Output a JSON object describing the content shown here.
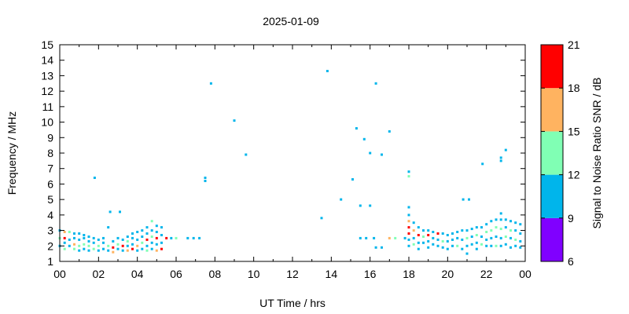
{
  "chart_data": {
    "type": "heatmap",
    "title": "2025-01-09",
    "xlabel": "UT Time / hrs",
    "ylabel": "Frequency / MHz",
    "xlim": [
      0,
      24
    ],
    "ylim": [
      1,
      15
    ],
    "x_tick_labels": [
      "00",
      "02",
      "04",
      "06",
      "08",
      "10",
      "12",
      "14",
      "16",
      "18",
      "20",
      "22",
      "00"
    ],
    "y_tick_labels": [
      "1",
      "2",
      "3",
      "4",
      "5",
      "6",
      "7",
      "8",
      "9",
      "10",
      "11",
      "12",
      "13",
      "14",
      "15"
    ],
    "colorbar": {
      "label": "Signal to Noise Ratio SNR / dB",
      "range": [
        6,
        21
      ],
      "tick_labels": [
        "6",
        "9",
        "12",
        "15",
        "18",
        "21"
      ],
      "bands": [
        {
          "from": 6,
          "to": 9,
          "color": "#8000ff"
        },
        {
          "from": 9,
          "to": 12,
          "color": "#00b5eb"
        },
        {
          "from": 12,
          "to": 15,
          "color": "#80ffb4"
        },
        {
          "from": 15,
          "to": 18,
          "color": "#ffb360"
        },
        {
          "from": 18,
          "to": 21,
          "color": "#ff0000"
        }
      ]
    },
    "points": [
      {
        "t": 0.0,
        "f": 2.0,
        "snr": 10
      },
      {
        "t": 0.0,
        "f": 2.5,
        "snr": 13
      },
      {
        "t": 0.0,
        "f": 3.0,
        "snr": 11
      },
      {
        "t": 0.25,
        "f": 1.8,
        "snr": 14
      },
      {
        "t": 0.25,
        "f": 2.2,
        "snr": 10
      },
      {
        "t": 0.25,
        "f": 2.5,
        "snr": 19
      },
      {
        "t": 0.25,
        "f": 2.9,
        "snr": 16
      },
      {
        "t": 0.5,
        "f": 2.0,
        "snr": 10
      },
      {
        "t": 0.5,
        "f": 2.4,
        "snr": 11
      },
      {
        "t": 0.5,
        "f": 2.9,
        "snr": 13
      },
      {
        "t": 0.75,
        "f": 1.8,
        "snr": 13
      },
      {
        "t": 0.75,
        "f": 2.1,
        "snr": 16
      },
      {
        "t": 0.75,
        "f": 2.5,
        "snr": 10
      },
      {
        "t": 0.75,
        "f": 2.8,
        "snr": 11
      },
      {
        "t": 1.0,
        "f": 1.7,
        "snr": 10
      },
      {
        "t": 1.0,
        "f": 2.0,
        "snr": 13
      },
      {
        "t": 1.0,
        "f": 2.4,
        "snr": 10
      },
      {
        "t": 1.0,
        "f": 2.8,
        "snr": 10
      },
      {
        "t": 1.25,
        "f": 1.8,
        "snr": 11
      },
      {
        "t": 1.25,
        "f": 2.1,
        "snr": 14
      },
      {
        "t": 1.25,
        "f": 2.5,
        "snr": 10
      },
      {
        "t": 1.25,
        "f": 2.7,
        "snr": 10
      },
      {
        "t": 1.5,
        "f": 1.7,
        "snr": 10
      },
      {
        "t": 1.5,
        "f": 2.0,
        "snr": 13
      },
      {
        "t": 1.5,
        "f": 2.3,
        "snr": 10
      },
      {
        "t": 1.5,
        "f": 2.6,
        "snr": 10
      },
      {
        "t": 1.75,
        "f": 1.8,
        "snr": 13
      },
      {
        "t": 1.75,
        "f": 2.2,
        "snr": 10
      },
      {
        "t": 1.75,
        "f": 2.5,
        "snr": 11
      },
      {
        "t": 1.8,
        "f": 6.4,
        "snr": 10
      },
      {
        "t": 2.0,
        "f": 1.7,
        "snr": 10
      },
      {
        "t": 2.0,
        "f": 2.0,
        "snr": 14
      },
      {
        "t": 2.0,
        "f": 2.4,
        "snr": 10
      },
      {
        "t": 2.25,
        "f": 1.8,
        "snr": 11
      },
      {
        "t": 2.25,
        "f": 2.2,
        "snr": 10
      },
      {
        "t": 2.25,
        "f": 2.5,
        "snr": 10
      },
      {
        "t": 2.5,
        "f": 1.7,
        "snr": 10
      },
      {
        "t": 2.5,
        "f": 2.0,
        "snr": 13
      },
      {
        "t": 2.5,
        "f": 3.2,
        "snr": 10
      },
      {
        "t": 2.6,
        "f": 4.2,
        "snr": 10
      },
      {
        "t": 2.75,
        "f": 1.6,
        "snr": 17
      },
      {
        "t": 2.75,
        "f": 1.9,
        "snr": 19
      },
      {
        "t": 2.75,
        "f": 2.3,
        "snr": 10
      },
      {
        "t": 3.0,
        "f": 1.8,
        "snr": 10
      },
      {
        "t": 3.0,
        "f": 2.1,
        "snr": 13
      },
      {
        "t": 3.0,
        "f": 2.5,
        "snr": 10
      },
      {
        "t": 3.1,
        "f": 4.2,
        "snr": 10
      },
      {
        "t": 3.25,
        "f": 1.7,
        "snr": 10
      },
      {
        "t": 3.25,
        "f": 2.0,
        "snr": 19
      },
      {
        "t": 3.25,
        "f": 2.4,
        "snr": 11
      },
      {
        "t": 3.5,
        "f": 1.7,
        "snr": 16
      },
      {
        "t": 3.5,
        "f": 2.0,
        "snr": 10
      },
      {
        "t": 3.5,
        "f": 2.3,
        "snr": 13
      },
      {
        "t": 3.5,
        "f": 2.6,
        "snr": 10
      },
      {
        "t": 3.75,
        "f": 1.8,
        "snr": 19
      },
      {
        "t": 3.75,
        "f": 2.1,
        "snr": 10
      },
      {
        "t": 3.75,
        "f": 2.5,
        "snr": 10
      },
      {
        "t": 3.75,
        "f": 2.8,
        "snr": 10
      },
      {
        "t": 4.0,
        "f": 1.7,
        "snr": 10
      },
      {
        "t": 4.0,
        "f": 2.0,
        "snr": 17
      },
      {
        "t": 4.0,
        "f": 2.4,
        "snr": 10
      },
      {
        "t": 4.0,
        "f": 2.9,
        "snr": 10
      },
      {
        "t": 4.25,
        "f": 1.8,
        "snr": 10
      },
      {
        "t": 4.25,
        "f": 2.2,
        "snr": 14
      },
      {
        "t": 4.25,
        "f": 2.6,
        "snr": 10
      },
      {
        "t": 4.25,
        "f": 3.0,
        "snr": 10
      },
      {
        "t": 4.5,
        "f": 1.7,
        "snr": 13
      },
      {
        "t": 4.5,
        "f": 2.0,
        "snr": 10
      },
      {
        "t": 4.5,
        "f": 2.4,
        "snr": 19
      },
      {
        "t": 4.5,
        "f": 2.8,
        "snr": 10
      },
      {
        "t": 4.5,
        "f": 3.2,
        "snr": 10
      },
      {
        "t": 4.75,
        "f": 1.8,
        "snr": 10
      },
      {
        "t": 4.75,
        "f": 2.2,
        "snr": 10
      },
      {
        "t": 4.75,
        "f": 2.6,
        "snr": 13
      },
      {
        "t": 4.75,
        "f": 3.0,
        "snr": 10
      },
      {
        "t": 4.75,
        "f": 3.6,
        "snr": 13
      },
      {
        "t": 5.0,
        "f": 1.7,
        "snr": 16
      },
      {
        "t": 5.0,
        "f": 2.1,
        "snr": 10
      },
      {
        "t": 5.0,
        "f": 2.5,
        "snr": 19
      },
      {
        "t": 5.0,
        "f": 2.9,
        "snr": 10
      },
      {
        "t": 5.0,
        "f": 3.3,
        "snr": 10
      },
      {
        "t": 5.25,
        "f": 1.8,
        "snr": 19
      },
      {
        "t": 5.25,
        "f": 2.2,
        "snr": 10
      },
      {
        "t": 5.25,
        "f": 2.7,
        "snr": 10
      },
      {
        "t": 5.25,
        "f": 3.2,
        "snr": 10
      },
      {
        "t": 5.5,
        "f": 2.5,
        "snr": 19
      },
      {
        "t": 5.75,
        "f": 2.5,
        "snr": 10
      },
      {
        "t": 6.0,
        "f": 2.5,
        "snr": 13
      },
      {
        "t": 6.6,
        "f": 2.5,
        "snr": 10
      },
      {
        "t": 6.9,
        "f": 2.5,
        "snr": 10
      },
      {
        "t": 7.2,
        "f": 2.5,
        "snr": 10
      },
      {
        "t": 7.5,
        "f": 6.2,
        "snr": 10
      },
      {
        "t": 7.5,
        "f": 6.4,
        "snr": 10
      },
      {
        "t": 7.8,
        "f": 12.5,
        "snr": 10
      },
      {
        "t": 9.0,
        "f": 10.1,
        "snr": 10
      },
      {
        "t": 9.6,
        "f": 7.9,
        "snr": 10
      },
      {
        "t": 13.5,
        "f": 3.8,
        "snr": 10
      },
      {
        "t": 13.8,
        "f": 13.3,
        "snr": 10
      },
      {
        "t": 14.5,
        "f": 5.0,
        "snr": 10
      },
      {
        "t": 15.1,
        "f": 6.3,
        "snr": 10
      },
      {
        "t": 15.3,
        "f": 9.6,
        "snr": 10
      },
      {
        "t": 15.5,
        "f": 4.6,
        "snr": 10
      },
      {
        "t": 15.5,
        "f": 2.5,
        "snr": 10
      },
      {
        "t": 15.7,
        "f": 8.9,
        "snr": 10
      },
      {
        "t": 15.8,
        "f": 2.5,
        "snr": 10
      },
      {
        "t": 16.0,
        "f": 8.0,
        "snr": 10
      },
      {
        "t": 16.0,
        "f": 4.6,
        "snr": 10
      },
      {
        "t": 16.2,
        "f": 2.5,
        "snr": 10
      },
      {
        "t": 16.3,
        "f": 12.5,
        "snr": 10
      },
      {
        "t": 16.3,
        "f": 1.9,
        "snr": 10
      },
      {
        "t": 16.6,
        "f": 7.9,
        "snr": 10
      },
      {
        "t": 16.6,
        "f": 1.9,
        "snr": 10
      },
      {
        "t": 17.0,
        "f": 9.4,
        "snr": 10
      },
      {
        "t": 17.0,
        "f": 2.5,
        "snr": 16
      },
      {
        "t": 17.3,
        "f": 2.5,
        "snr": 13
      },
      {
        "t": 17.8,
        "f": 2.5,
        "snr": 10
      },
      {
        "t": 18.0,
        "f": 6.8,
        "snr": 10
      },
      {
        "t": 18.0,
        "f": 6.5,
        "snr": 13
      },
      {
        "t": 18.0,
        "f": 4.5,
        "snr": 10
      },
      {
        "t": 18.0,
        "f": 4.0,
        "snr": 10
      },
      {
        "t": 18.0,
        "f": 3.6,
        "snr": 17
      },
      {
        "t": 18.0,
        "f": 3.2,
        "snr": 19
      },
      {
        "t": 18.0,
        "f": 2.8,
        "snr": 19
      },
      {
        "t": 18.0,
        "f": 2.4,
        "snr": 10
      },
      {
        "t": 18.0,
        "f": 2.0,
        "snr": 10
      },
      {
        "t": 18.25,
        "f": 3.5,
        "snr": 10
      },
      {
        "t": 18.25,
        "f": 3.0,
        "snr": 16
      },
      {
        "t": 18.25,
        "f": 2.5,
        "snr": 10
      },
      {
        "t": 18.25,
        "f": 2.1,
        "snr": 13
      },
      {
        "t": 18.5,
        "f": 3.2,
        "snr": 10
      },
      {
        "t": 18.5,
        "f": 2.7,
        "snr": 19
      },
      {
        "t": 18.5,
        "f": 2.2,
        "snr": 10
      },
      {
        "t": 18.5,
        "f": 1.8,
        "snr": 10
      },
      {
        "t": 18.75,
        "f": 3.0,
        "snr": 10
      },
      {
        "t": 18.75,
        "f": 2.6,
        "snr": 13
      },
      {
        "t": 18.75,
        "f": 2.2,
        "snr": 10
      },
      {
        "t": 19.0,
        "f": 3.0,
        "snr": 10
      },
      {
        "t": 19.0,
        "f": 2.7,
        "snr": 19
      },
      {
        "t": 19.0,
        "f": 2.3,
        "snr": 10
      },
      {
        "t": 19.0,
        "f": 1.9,
        "snr": 10
      },
      {
        "t": 19.25,
        "f": 2.9,
        "snr": 10
      },
      {
        "t": 19.25,
        "f": 2.5,
        "snr": 10
      },
      {
        "t": 19.25,
        "f": 2.1,
        "snr": 10
      },
      {
        "t": 19.5,
        "f": 2.8,
        "snr": 19
      },
      {
        "t": 19.5,
        "f": 2.4,
        "snr": 10
      },
      {
        "t": 19.5,
        "f": 2.0,
        "snr": 10
      },
      {
        "t": 19.75,
        "f": 2.8,
        "snr": 10
      },
      {
        "t": 19.75,
        "f": 2.3,
        "snr": 13
      },
      {
        "t": 19.75,
        "f": 1.9,
        "snr": 10
      },
      {
        "t": 20.0,
        "f": 2.7,
        "snr": 10
      },
      {
        "t": 20.0,
        "f": 2.3,
        "snr": 10
      },
      {
        "t": 20.0,
        "f": 1.8,
        "snr": 10
      },
      {
        "t": 20.25,
        "f": 2.8,
        "snr": 10
      },
      {
        "t": 20.25,
        "f": 2.4,
        "snr": 10
      },
      {
        "t": 20.25,
        "f": 2.0,
        "snr": 10
      },
      {
        "t": 20.5,
        "f": 2.9,
        "snr": 10
      },
      {
        "t": 20.5,
        "f": 2.5,
        "snr": 10
      },
      {
        "t": 20.5,
        "f": 2.0,
        "snr": 13
      },
      {
        "t": 20.75,
        "f": 3.0,
        "snr": 10
      },
      {
        "t": 20.75,
        "f": 2.4,
        "snr": 10
      },
      {
        "t": 20.75,
        "f": 1.8,
        "snr": 10
      },
      {
        "t": 20.8,
        "f": 5.0,
        "snr": 10
      },
      {
        "t": 21.0,
        "f": 3.0,
        "snr": 10
      },
      {
        "t": 21.0,
        "f": 2.5,
        "snr": 13
      },
      {
        "t": 21.0,
        "f": 2.0,
        "snr": 10
      },
      {
        "t": 21.0,
        "f": 1.5,
        "snr": 10
      },
      {
        "t": 21.1,
        "f": 5.0,
        "snr": 10
      },
      {
        "t": 21.25,
        "f": 3.1,
        "snr": 10
      },
      {
        "t": 21.25,
        "f": 2.6,
        "snr": 10
      },
      {
        "t": 21.25,
        "f": 2.1,
        "snr": 10
      },
      {
        "t": 21.5,
        "f": 3.2,
        "snr": 10
      },
      {
        "t": 21.5,
        "f": 2.7,
        "snr": 13
      },
      {
        "t": 21.5,
        "f": 2.2,
        "snr": 10
      },
      {
        "t": 21.5,
        "f": 1.8,
        "snr": 10
      },
      {
        "t": 21.75,
        "f": 3.2,
        "snr": 10
      },
      {
        "t": 21.75,
        "f": 2.6,
        "snr": 10
      },
      {
        "t": 21.75,
        "f": 2.1,
        "snr": 13
      },
      {
        "t": 21.8,
        "f": 7.3,
        "snr": 10
      },
      {
        "t": 22.0,
        "f": 3.4,
        "snr": 10
      },
      {
        "t": 22.0,
        "f": 2.9,
        "snr": 13
      },
      {
        "t": 22.0,
        "f": 2.4,
        "snr": 10
      },
      {
        "t": 22.0,
        "f": 2.0,
        "snr": 10
      },
      {
        "t": 22.25,
        "f": 3.6,
        "snr": 10
      },
      {
        "t": 22.25,
        "f": 3.0,
        "snr": 13
      },
      {
        "t": 22.25,
        "f": 2.5,
        "snr": 10
      },
      {
        "t": 22.25,
        "f": 2.0,
        "snr": 10
      },
      {
        "t": 22.5,
        "f": 3.7,
        "snr": 10
      },
      {
        "t": 22.5,
        "f": 3.2,
        "snr": 13
      },
      {
        "t": 22.5,
        "f": 2.6,
        "snr": 10
      },
      {
        "t": 22.5,
        "f": 2.0,
        "snr": 13
      },
      {
        "t": 22.75,
        "f": 7.5,
        "snr": 10
      },
      {
        "t": 22.75,
        "f": 7.7,
        "snr": 10
      },
      {
        "t": 22.75,
        "f": 4.1,
        "snr": 10
      },
      {
        "t": 22.75,
        "f": 3.7,
        "snr": 10
      },
      {
        "t": 22.75,
        "f": 3.1,
        "snr": 13
      },
      {
        "t": 22.75,
        "f": 2.5,
        "snr": 10
      },
      {
        "t": 22.75,
        "f": 2.0,
        "snr": 10
      },
      {
        "t": 23.0,
        "f": 8.2,
        "snr": 10
      },
      {
        "t": 23.0,
        "f": 3.7,
        "snr": 10
      },
      {
        "t": 23.0,
        "f": 3.2,
        "snr": 10
      },
      {
        "t": 23.0,
        "f": 2.6,
        "snr": 13
      },
      {
        "t": 23.0,
        "f": 2.1,
        "snr": 10
      },
      {
        "t": 23.25,
        "f": 3.6,
        "snr": 10
      },
      {
        "t": 23.25,
        "f": 3.0,
        "snr": 13
      },
      {
        "t": 23.25,
        "f": 2.5,
        "snr": 10
      },
      {
        "t": 23.25,
        "f": 1.9,
        "snr": 10
      },
      {
        "t": 23.5,
        "f": 3.5,
        "snr": 10
      },
      {
        "t": 23.5,
        "f": 3.0,
        "snr": 10
      },
      {
        "t": 23.5,
        "f": 2.4,
        "snr": 13
      },
      {
        "t": 23.5,
        "f": 2.0,
        "snr": 10
      },
      {
        "t": 23.75,
        "f": 3.4,
        "snr": 10
      },
      {
        "t": 23.75,
        "f": 2.8,
        "snr": 10
      },
      {
        "t": 23.75,
        "f": 2.3,
        "snr": 10
      },
      {
        "t": 23.75,
        "f": 1.9,
        "snr": 10
      }
    ]
  }
}
